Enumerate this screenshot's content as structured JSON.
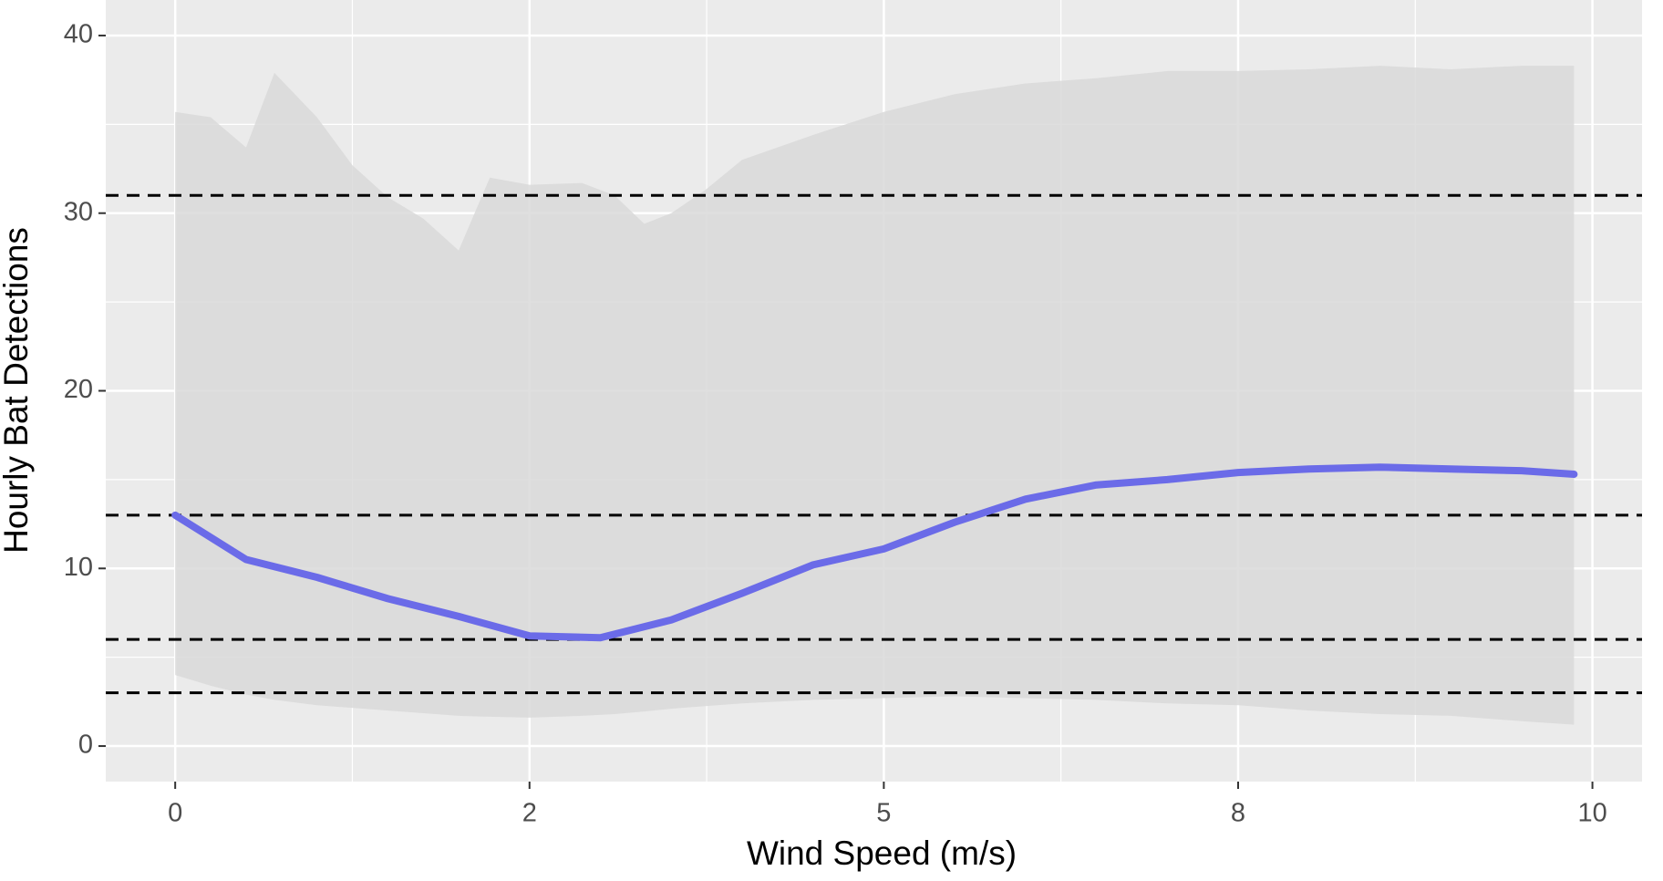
{
  "chart_data": {
    "type": "line",
    "x_label": "Wind Speed (m/s)",
    "y_label": "Hourly Bat Detections",
    "x": [
      0,
      0.5,
      1,
      1.5,
      2,
      2.5,
      3,
      3.5,
      4,
      4.5,
      5,
      5.5,
      6,
      6.5,
      7,
      7.5,
      8,
      8.5,
      9,
      9.5,
      9.87
    ],
    "values": [
      13,
      10.5,
      9.5,
      8.3,
      7.3,
      6.2,
      6.1,
      7.1,
      8.6,
      10.2,
      11.1,
      12.6,
      13.9,
      14.7,
      15.0,
      15.4,
      15.6,
      15.7,
      15.6,
      15.5,
      15.3
    ],
    "color": "#6b6be8",
    "band": {
      "x": [
        0,
        0.25,
        0.5,
        0.7,
        1,
        1.25,
        1.5,
        1.75,
        2,
        2.22,
        2.5,
        2.87,
        3.1,
        3.31,
        3.5,
        3.74,
        4,
        4.5,
        5,
        5.5,
        6,
        6.5,
        7,
        7.5,
        8,
        8.5,
        9,
        9.5,
        9.87
      ],
      "upper": [
        35.7,
        35.4,
        33.7,
        37.9,
        35.4,
        32.7,
        30.9,
        29.7,
        27.9,
        32.0,
        31.6,
        31.7,
        31.0,
        29.4,
        30.0,
        31.3,
        33.0,
        34.4,
        35.7,
        36.7,
        37.3,
        37.6,
        38.0,
        38.0,
        38.1,
        38.3,
        38.1,
        38.3,
        38.3
      ],
      "lower": [
        4.0,
        3.4,
        2.9,
        2.6,
        2.3,
        2.15,
        2.0,
        1.85,
        1.7,
        1.65,
        1.6,
        1.7,
        1.8,
        1.95,
        2.1,
        2.25,
        2.4,
        2.6,
        2.7,
        2.8,
        2.7,
        2.6,
        2.4,
        2.3,
        2.0,
        1.8,
        1.7,
        1.4,
        1.2
      ],
      "color": "#d9d9d9"
    },
    "hlines": [
      31,
      13,
      6,
      3
    ],
    "xlim": [
      -0.49,
      10.35
    ],
    "ylim": [
      -2,
      42
    ],
    "xticks": [
      0,
      {
        "value": 2.5,
        "label": "2"
      },
      5,
      {
        "value": 7.5,
        "label": "8"
      },
      10
    ],
    "yticks": [
      0,
      10,
      20,
      30,
      40
    ],
    "xminor": [
      1.25,
      3.75,
      6.25,
      8.75
    ],
    "yminor": [
      5,
      15,
      25,
      35
    ],
    "grid": true
  }
}
